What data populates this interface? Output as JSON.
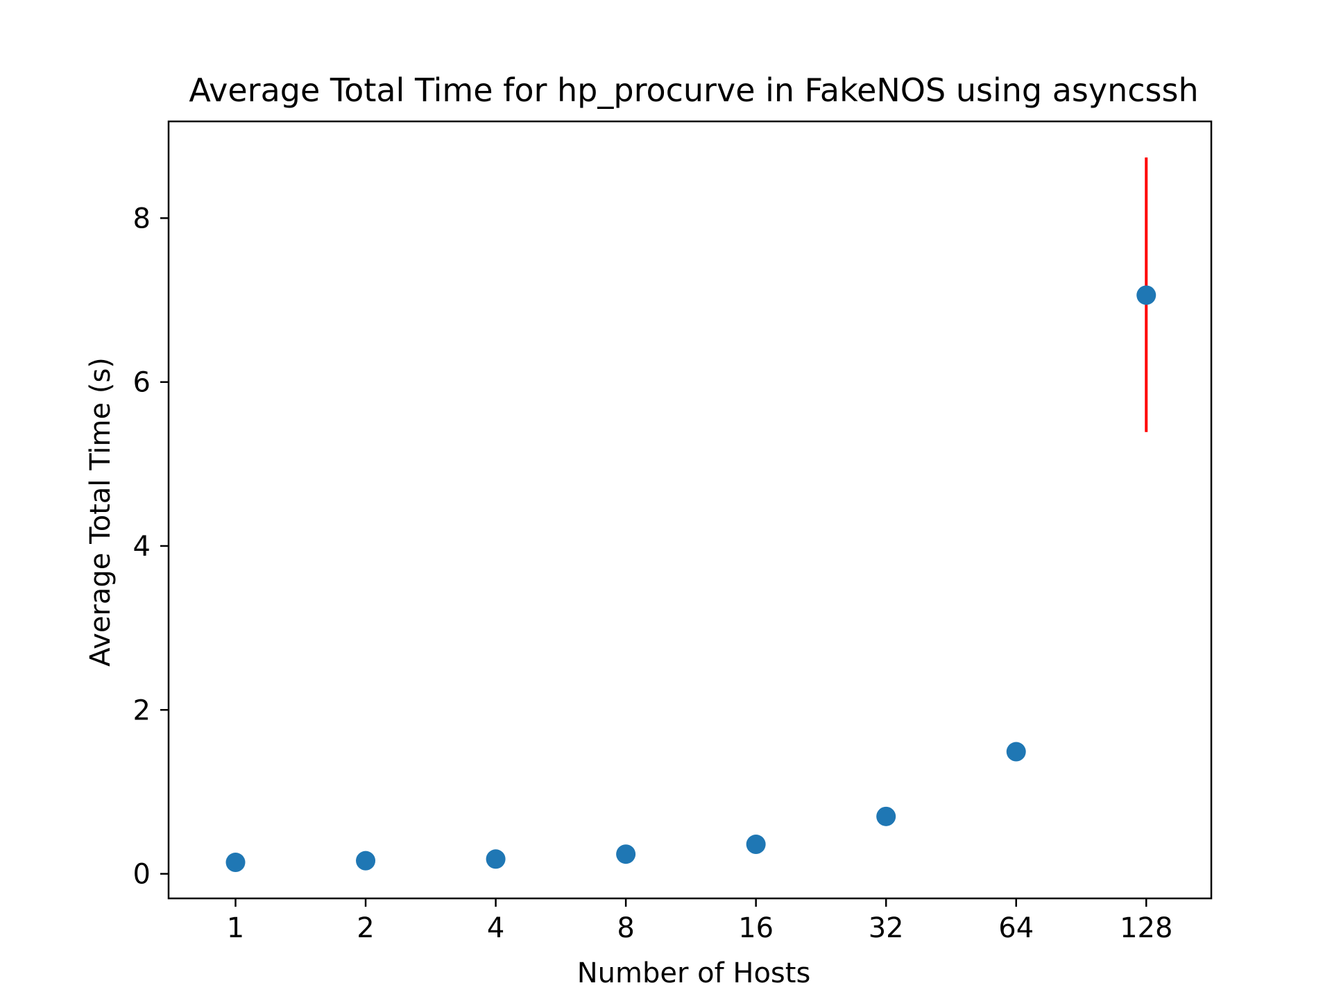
{
  "chart_data": {
    "type": "scatter",
    "title": "Average Total Time for hp_procurve in FakeNOS using asyncssh",
    "xlabel": "Number of Hosts",
    "ylabel": "Average Total Time (s)",
    "x_scale": "log2",
    "x_ticks": [
      1,
      2,
      4,
      8,
      16,
      32,
      64,
      128
    ],
    "x_tick_labels": [
      "1",
      "2",
      "4",
      "8",
      "16",
      "32",
      "64",
      "128"
    ],
    "xlim": [
      0.7,
      181
    ],
    "y_ticks": [
      0,
      2,
      4,
      6,
      8
    ],
    "y_tick_labels": [
      "0",
      "2",
      "4",
      "6",
      "8"
    ],
    "ylim": [
      -0.3,
      9.18
    ],
    "grid": false,
    "legend": "none",
    "series": [
      {
        "x": [
          1,
          2,
          4,
          8,
          16,
          32,
          64,
          128
        ],
        "y": [
          0.14,
          0.16,
          0.18,
          0.24,
          0.36,
          0.7,
          1.49,
          7.06
        ],
        "error_low": [
          0,
          0,
          0,
          0,
          0,
          0,
          0,
          5.39
        ],
        "error_high": [
          0,
          0,
          0,
          0,
          0,
          0,
          0,
          8.74
        ]
      }
    ],
    "colors": {
      "marker": "#1f77b4",
      "errorbar": "#ff0000",
      "axes": "#000000"
    }
  }
}
